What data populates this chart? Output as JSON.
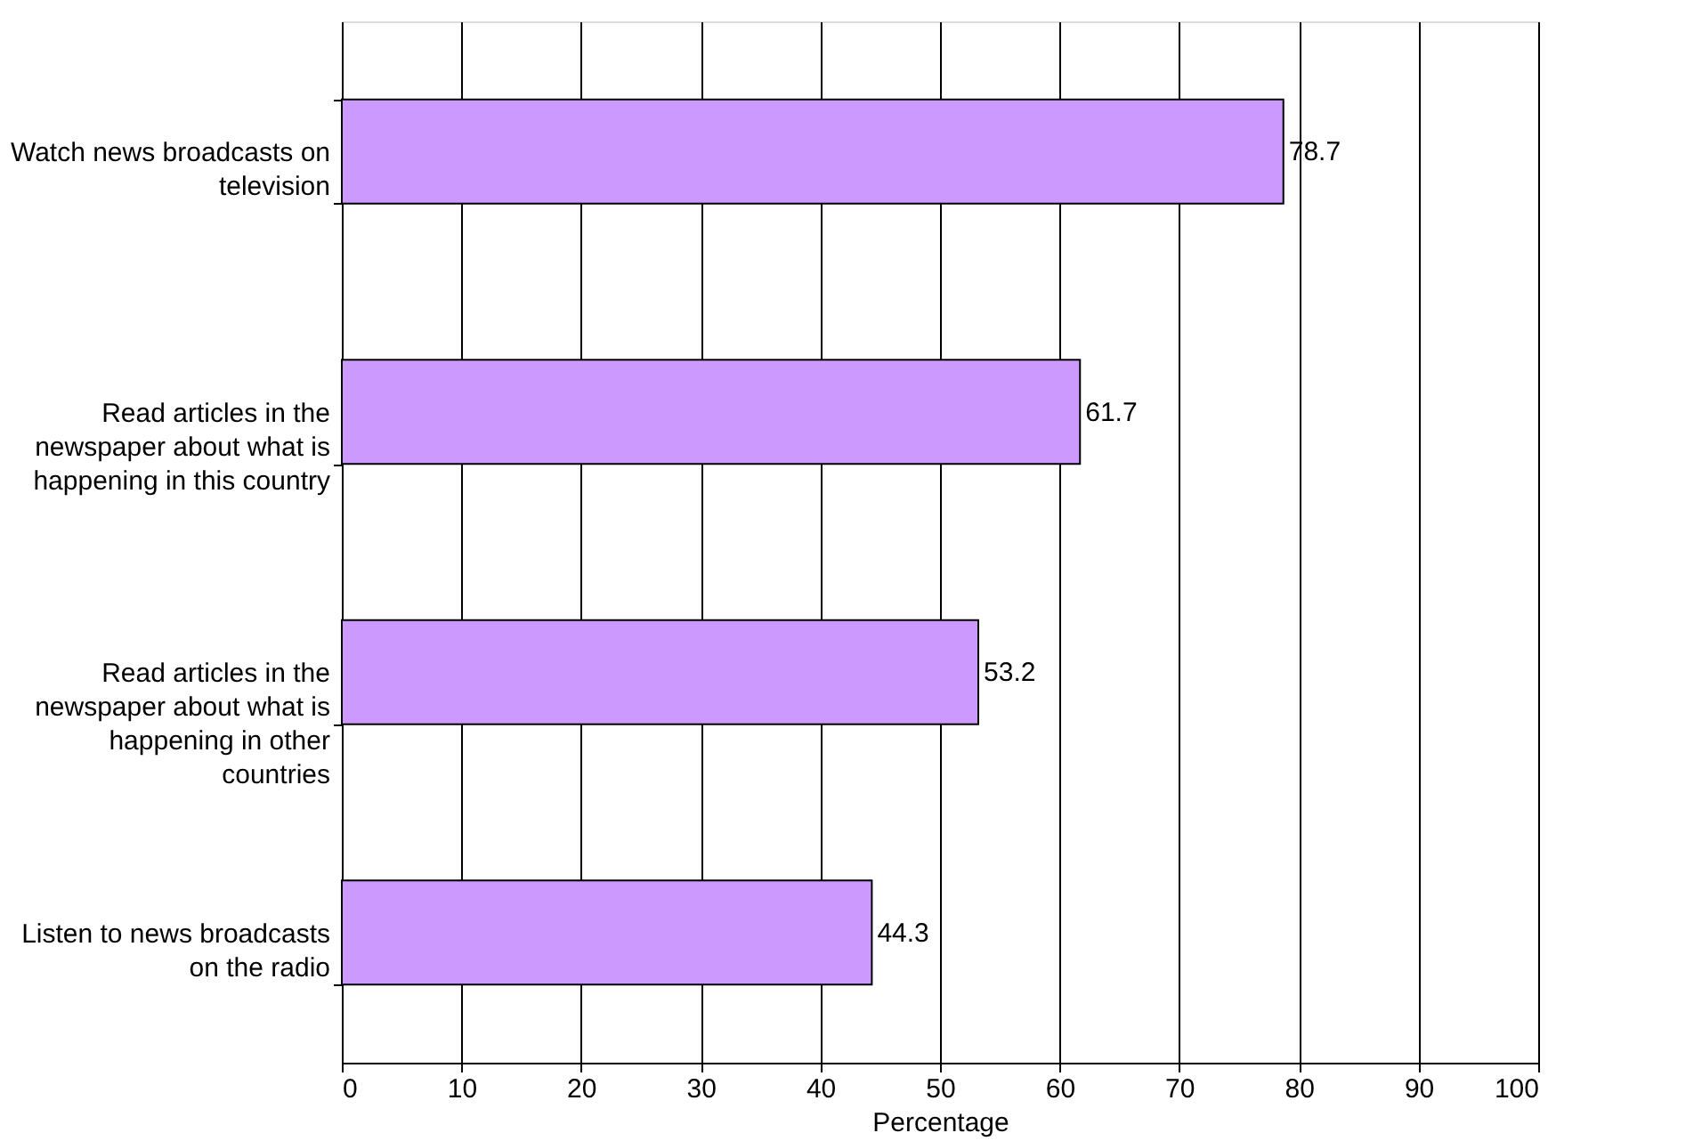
{
  "chart_data": {
    "type": "bar",
    "orientation": "horizontal",
    "categories": [
      "Watch news broadcasts on television",
      "Read articles in the newspaper about what is happening in this country",
      "Read articles in the newspaper about what is happening in other countries",
      "Listen to news broadcasts on the radio"
    ],
    "values": [
      78.7,
      61.7,
      53.2,
      44.3
    ],
    "color": "#cc99ff",
    "xlabel": "Percentage",
    "xlim": [
      0,
      100
    ],
    "xticks": [
      0,
      10,
      20,
      30,
      40,
      50,
      60,
      70,
      80,
      90,
      100
    ],
    "grid": "x",
    "data_labels": true
  }
}
